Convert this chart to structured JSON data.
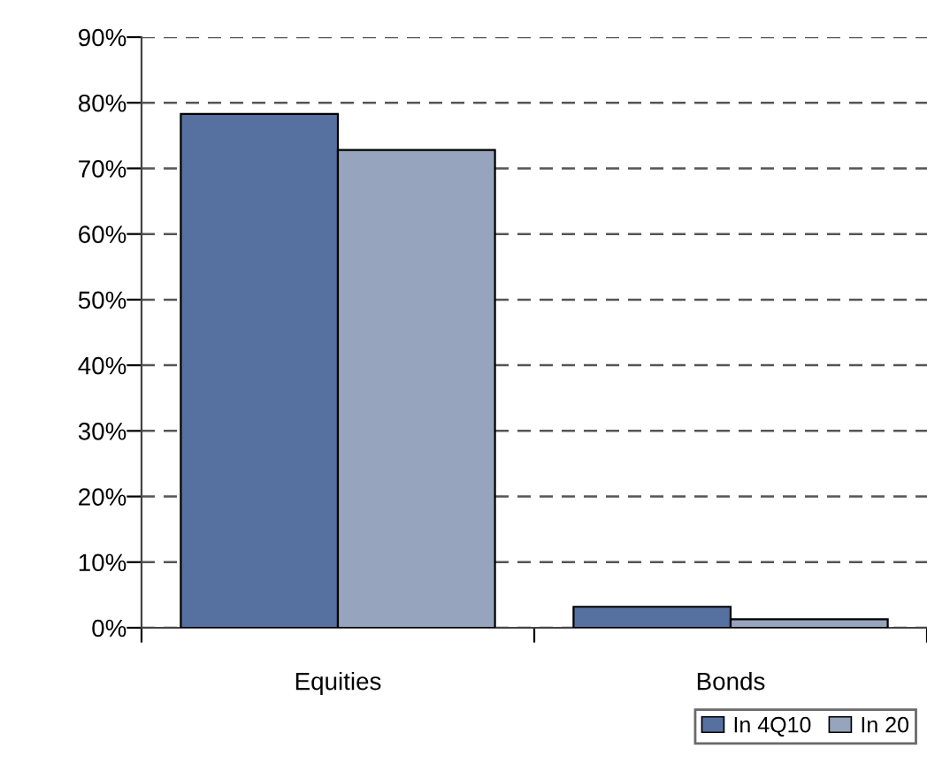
{
  "chart_data": {
    "type": "bar",
    "categories": [
      "Equities",
      "Bonds"
    ],
    "series": [
      {
        "name": "In 4Q10",
        "color": "#56709f",
        "values": [
          78.3,
          3.2
        ]
      },
      {
        "name": "In 20",
        "color": "#96a5bd",
        "values": [
          72.8,
          1.3
        ]
      }
    ],
    "ylim": [
      0,
      90
    ],
    "yticks": [
      {
        "value": 0,
        "label": "0%"
      },
      {
        "value": 10,
        "label": "10%"
      },
      {
        "value": 20,
        "label": "20%"
      },
      {
        "value": 30,
        "label": "30%"
      },
      {
        "value": 40,
        "label": "40%"
      },
      {
        "value": 50,
        "label": "50%"
      },
      {
        "value": 60,
        "label": "60%"
      },
      {
        "value": 70,
        "label": "70%"
      },
      {
        "value": 80,
        "label": "80%"
      },
      {
        "value": 90,
        "label": "90%"
      }
    ],
    "grid": "y",
    "legend": "bottom right"
  }
}
